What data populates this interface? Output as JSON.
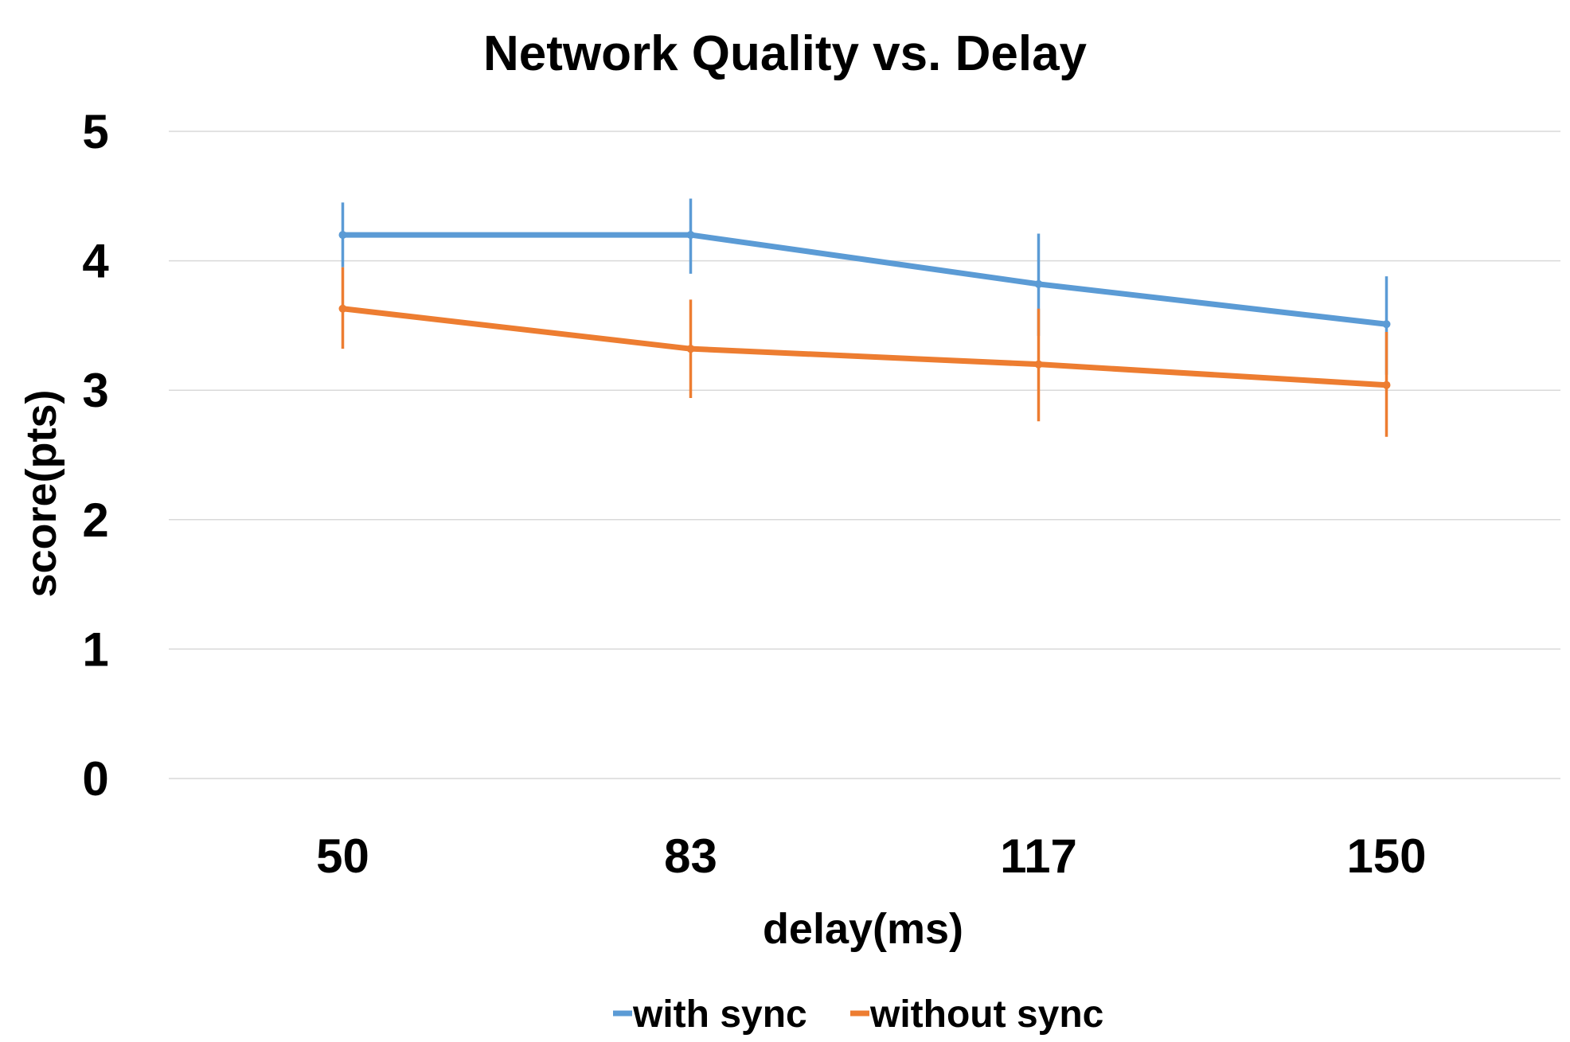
{
  "chart_data": {
    "type": "line",
    "title": "Network Quality vs. Delay",
    "xlabel": "delay(ms)",
    "ylabel": "score(pts)",
    "categories": [
      "50",
      "83",
      "117",
      "150"
    ],
    "ylim": [
      0,
      5
    ],
    "yticks": [
      "0",
      "1",
      "2",
      "3",
      "4",
      "5"
    ],
    "grid": true,
    "legend_position": "bottom",
    "series": [
      {
        "name": "with sync",
        "color": "#5B9BD5",
        "values": [
          4.2,
          4.2,
          3.82,
          3.51
        ],
        "err_low": [
          3.95,
          3.9,
          3.42,
          3.12
        ],
        "err_high": [
          4.45,
          4.48,
          4.21,
          3.88
        ]
      },
      {
        "name": "without sync",
        "color": "#ED7D31",
        "values": [
          3.63,
          3.32,
          3.2,
          3.04
        ],
        "err_low": [
          3.32,
          2.94,
          2.76,
          2.64
        ],
        "err_high": [
          3.95,
          3.7,
          3.63,
          3.45
        ]
      }
    ]
  }
}
